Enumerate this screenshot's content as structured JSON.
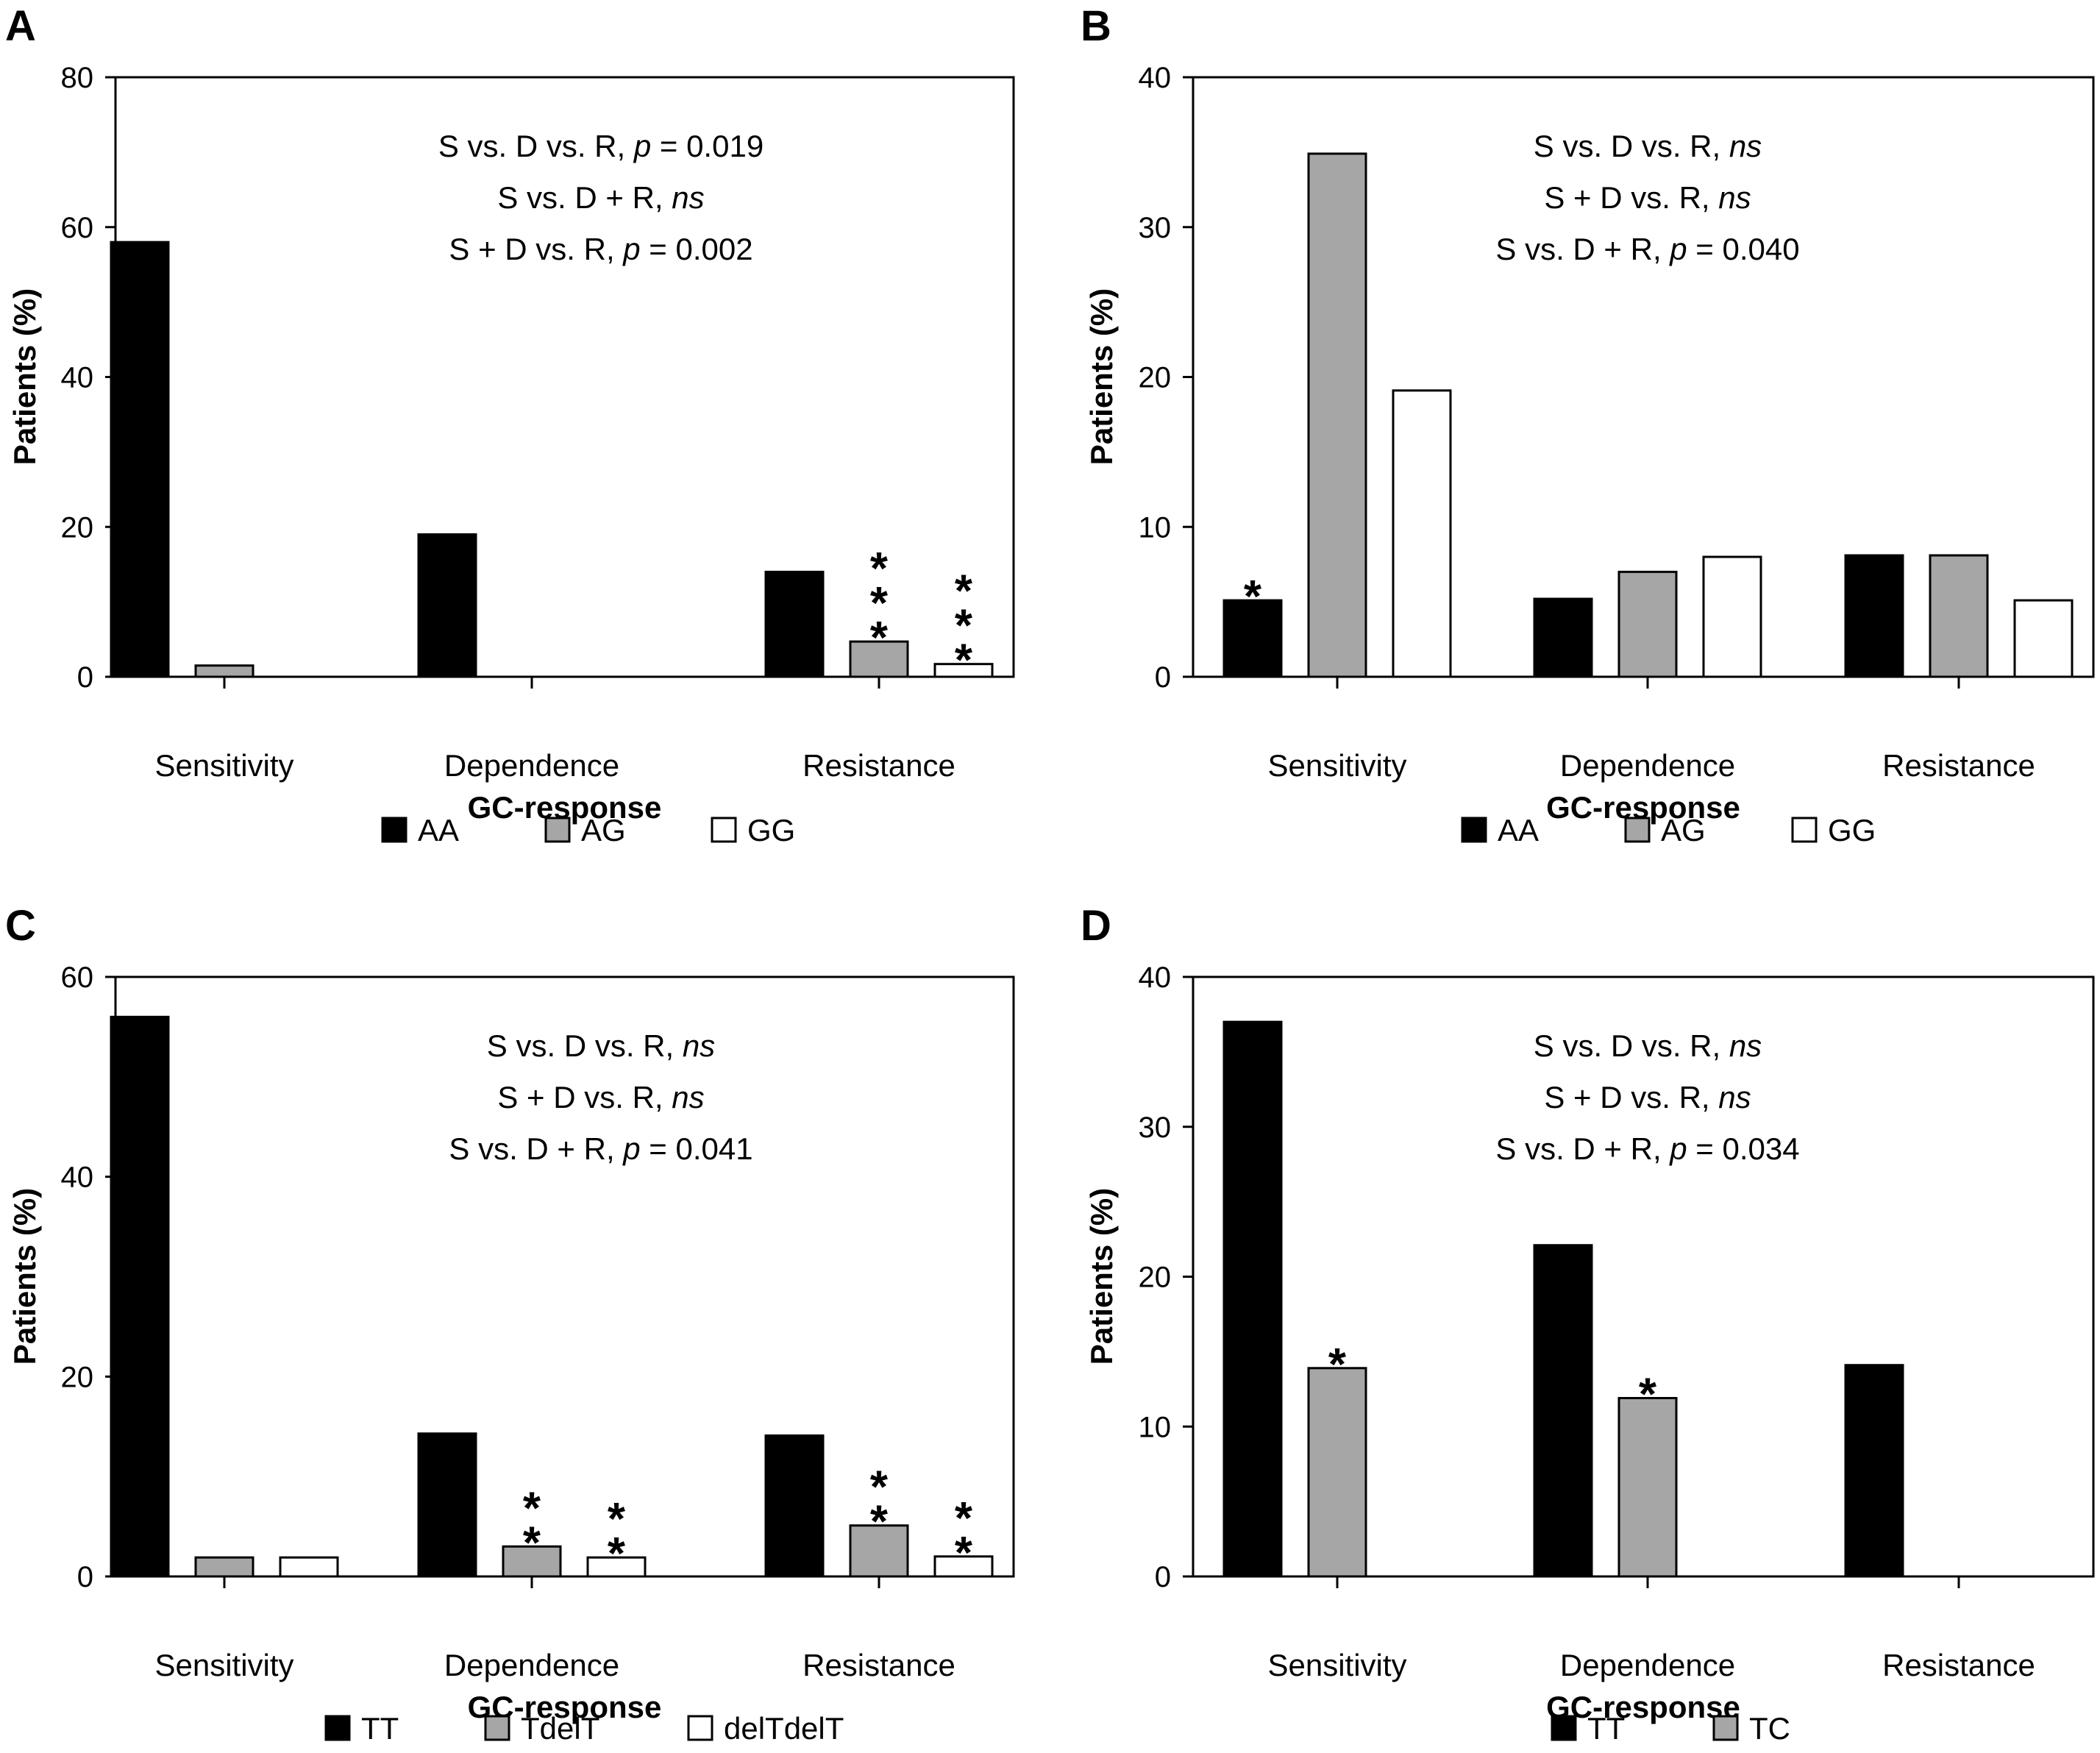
{
  "colors": {
    "black_bar": "#000000",
    "gray_bar": "#a6a6a6",
    "white_bar": "#ffffff",
    "outline": "#000000"
  },
  "chart_data": [
    {
      "panel": "A",
      "type": "bar",
      "categories": [
        "Sensitivity",
        "Dependence",
        "Resistance"
      ],
      "xlabel": "GC-response",
      "ylabel": "Patients (%)",
      "ylim": [
        0,
        80
      ],
      "yticks": [
        0,
        20,
        40,
        60,
        80
      ],
      "series": [
        {
          "name": "AA",
          "color": "#000000",
          "values": [
            58,
            19,
            14
          ],
          "markers": [
            "",
            "",
            ""
          ]
        },
        {
          "name": "AG",
          "color": "#a6a6a6",
          "values": [
            1.5,
            0,
            4.7
          ],
          "markers": [
            "",
            "",
            "***"
          ]
        },
        {
          "name": "GG",
          "color": "#ffffff",
          "values": [
            0,
            0,
            1.7
          ],
          "markers": [
            "",
            "",
            "***"
          ]
        }
      ],
      "annotations": [
        [
          {
            "t": "S vs. D vs. R, "
          },
          {
            "t": "p",
            "i": true
          },
          {
            "t": " = 0.019"
          }
        ],
        [
          {
            "t": "S vs. D + R, "
          },
          {
            "t": "ns",
            "i": true
          }
        ],
        [
          {
            "t": "S + D vs. R, "
          },
          {
            "t": "p",
            "i": true
          },
          {
            "t": " = 0.002"
          }
        ]
      ],
      "grid": false,
      "legend_position": "bottom"
    },
    {
      "panel": "B",
      "type": "bar",
      "categories": [
        "Sensitivity",
        "Dependence",
        "Resistance"
      ],
      "xlabel": "GC-response",
      "ylabel": "Patients (%)",
      "ylim": [
        0,
        40
      ],
      "yticks": [
        0,
        10,
        20,
        30,
        40
      ],
      "series": [
        {
          "name": "AA",
          "color": "#000000",
          "values": [
            5.1,
            5.2,
            8.1
          ],
          "markers": [
            "*",
            "",
            ""
          ]
        },
        {
          "name": "AG",
          "color": "#a6a6a6",
          "values": [
            34.9,
            7.0,
            8.1
          ],
          "markers": [
            "",
            "",
            ""
          ]
        },
        {
          "name": "GG",
          "color": "#ffffff",
          "values": [
            19.1,
            8.0,
            5.1
          ],
          "markers": [
            "",
            "",
            ""
          ]
        }
      ],
      "annotations": [
        [
          {
            "t": "S vs. D vs. R, "
          },
          {
            "t": "ns",
            "i": true
          }
        ],
        [
          {
            "t": "S + D vs. R, "
          },
          {
            "t": "ns",
            "i": true
          }
        ],
        [
          {
            "t": "S vs. D + R, "
          },
          {
            "t": "p",
            "i": true
          },
          {
            "t": " = 0.040"
          }
        ]
      ],
      "grid": false,
      "legend_position": "bottom"
    },
    {
      "panel": "C",
      "type": "bar",
      "categories": [
        "Sensitivity",
        "Dependence",
        "Resistance"
      ],
      "xlabel": "GC-response",
      "ylabel": "Patients (%)",
      "ylim": [
        0,
        60
      ],
      "yticks": [
        0,
        20,
        40,
        60
      ],
      "series": [
        {
          "name": "TT",
          "color": "#000000",
          "values": [
            56,
            14.3,
            14.1
          ],
          "markers": [
            "",
            "",
            ""
          ]
        },
        {
          "name": "TdelT",
          "color": "#a6a6a6",
          "values": [
            1.9,
            3.0,
            5.1
          ],
          "markers": [
            "",
            "**",
            "**"
          ]
        },
        {
          "name": "delTdelT",
          "color": "#ffffff",
          "values": [
            1.9,
            1.9,
            2.0
          ],
          "markers": [
            "",
            "**",
            "**"
          ]
        }
      ],
      "annotations": [
        [
          {
            "t": "S vs. D vs. R, "
          },
          {
            "t": "ns",
            "i": true
          }
        ],
        [
          {
            "t": "S + D vs. R, "
          },
          {
            "t": "ns",
            "i": true
          }
        ],
        [
          {
            "t": "S vs. D + R, "
          },
          {
            "t": "p",
            "i": true
          },
          {
            "t": " = 0.041"
          }
        ]
      ],
      "grid": false,
      "legend_position": "bottom"
    },
    {
      "panel": "D",
      "type": "bar",
      "categories": [
        "Sensitivity",
        "Dependence",
        "Resistance"
      ],
      "xlabel": "GC-response",
      "ylabel": "Patients (%)",
      "ylim": [
        0,
        40
      ],
      "yticks": [
        0,
        10,
        20,
        30,
        40
      ],
      "series": [
        {
          "name": "TT",
          "color": "#000000",
          "values": [
            37,
            22.1,
            14.1
          ],
          "markers": [
            "",
            "",
            ""
          ]
        },
        {
          "name": "TC",
          "color": "#a6a6a6",
          "values": [
            13.9,
            11.9,
            0
          ],
          "markers": [
            "*",
            "*",
            ""
          ]
        }
      ],
      "annotations": [
        [
          {
            "t": "S vs. D vs. R, "
          },
          {
            "t": "ns",
            "i": true
          }
        ],
        [
          {
            "t": "S + D vs. R, "
          },
          {
            "t": "ns",
            "i": true
          }
        ],
        [
          {
            "t": "S vs. D + R, "
          },
          {
            "t": "p",
            "i": true
          },
          {
            "t": " = 0.034"
          }
        ]
      ],
      "grid": false,
      "legend_position": "bottom"
    }
  ]
}
